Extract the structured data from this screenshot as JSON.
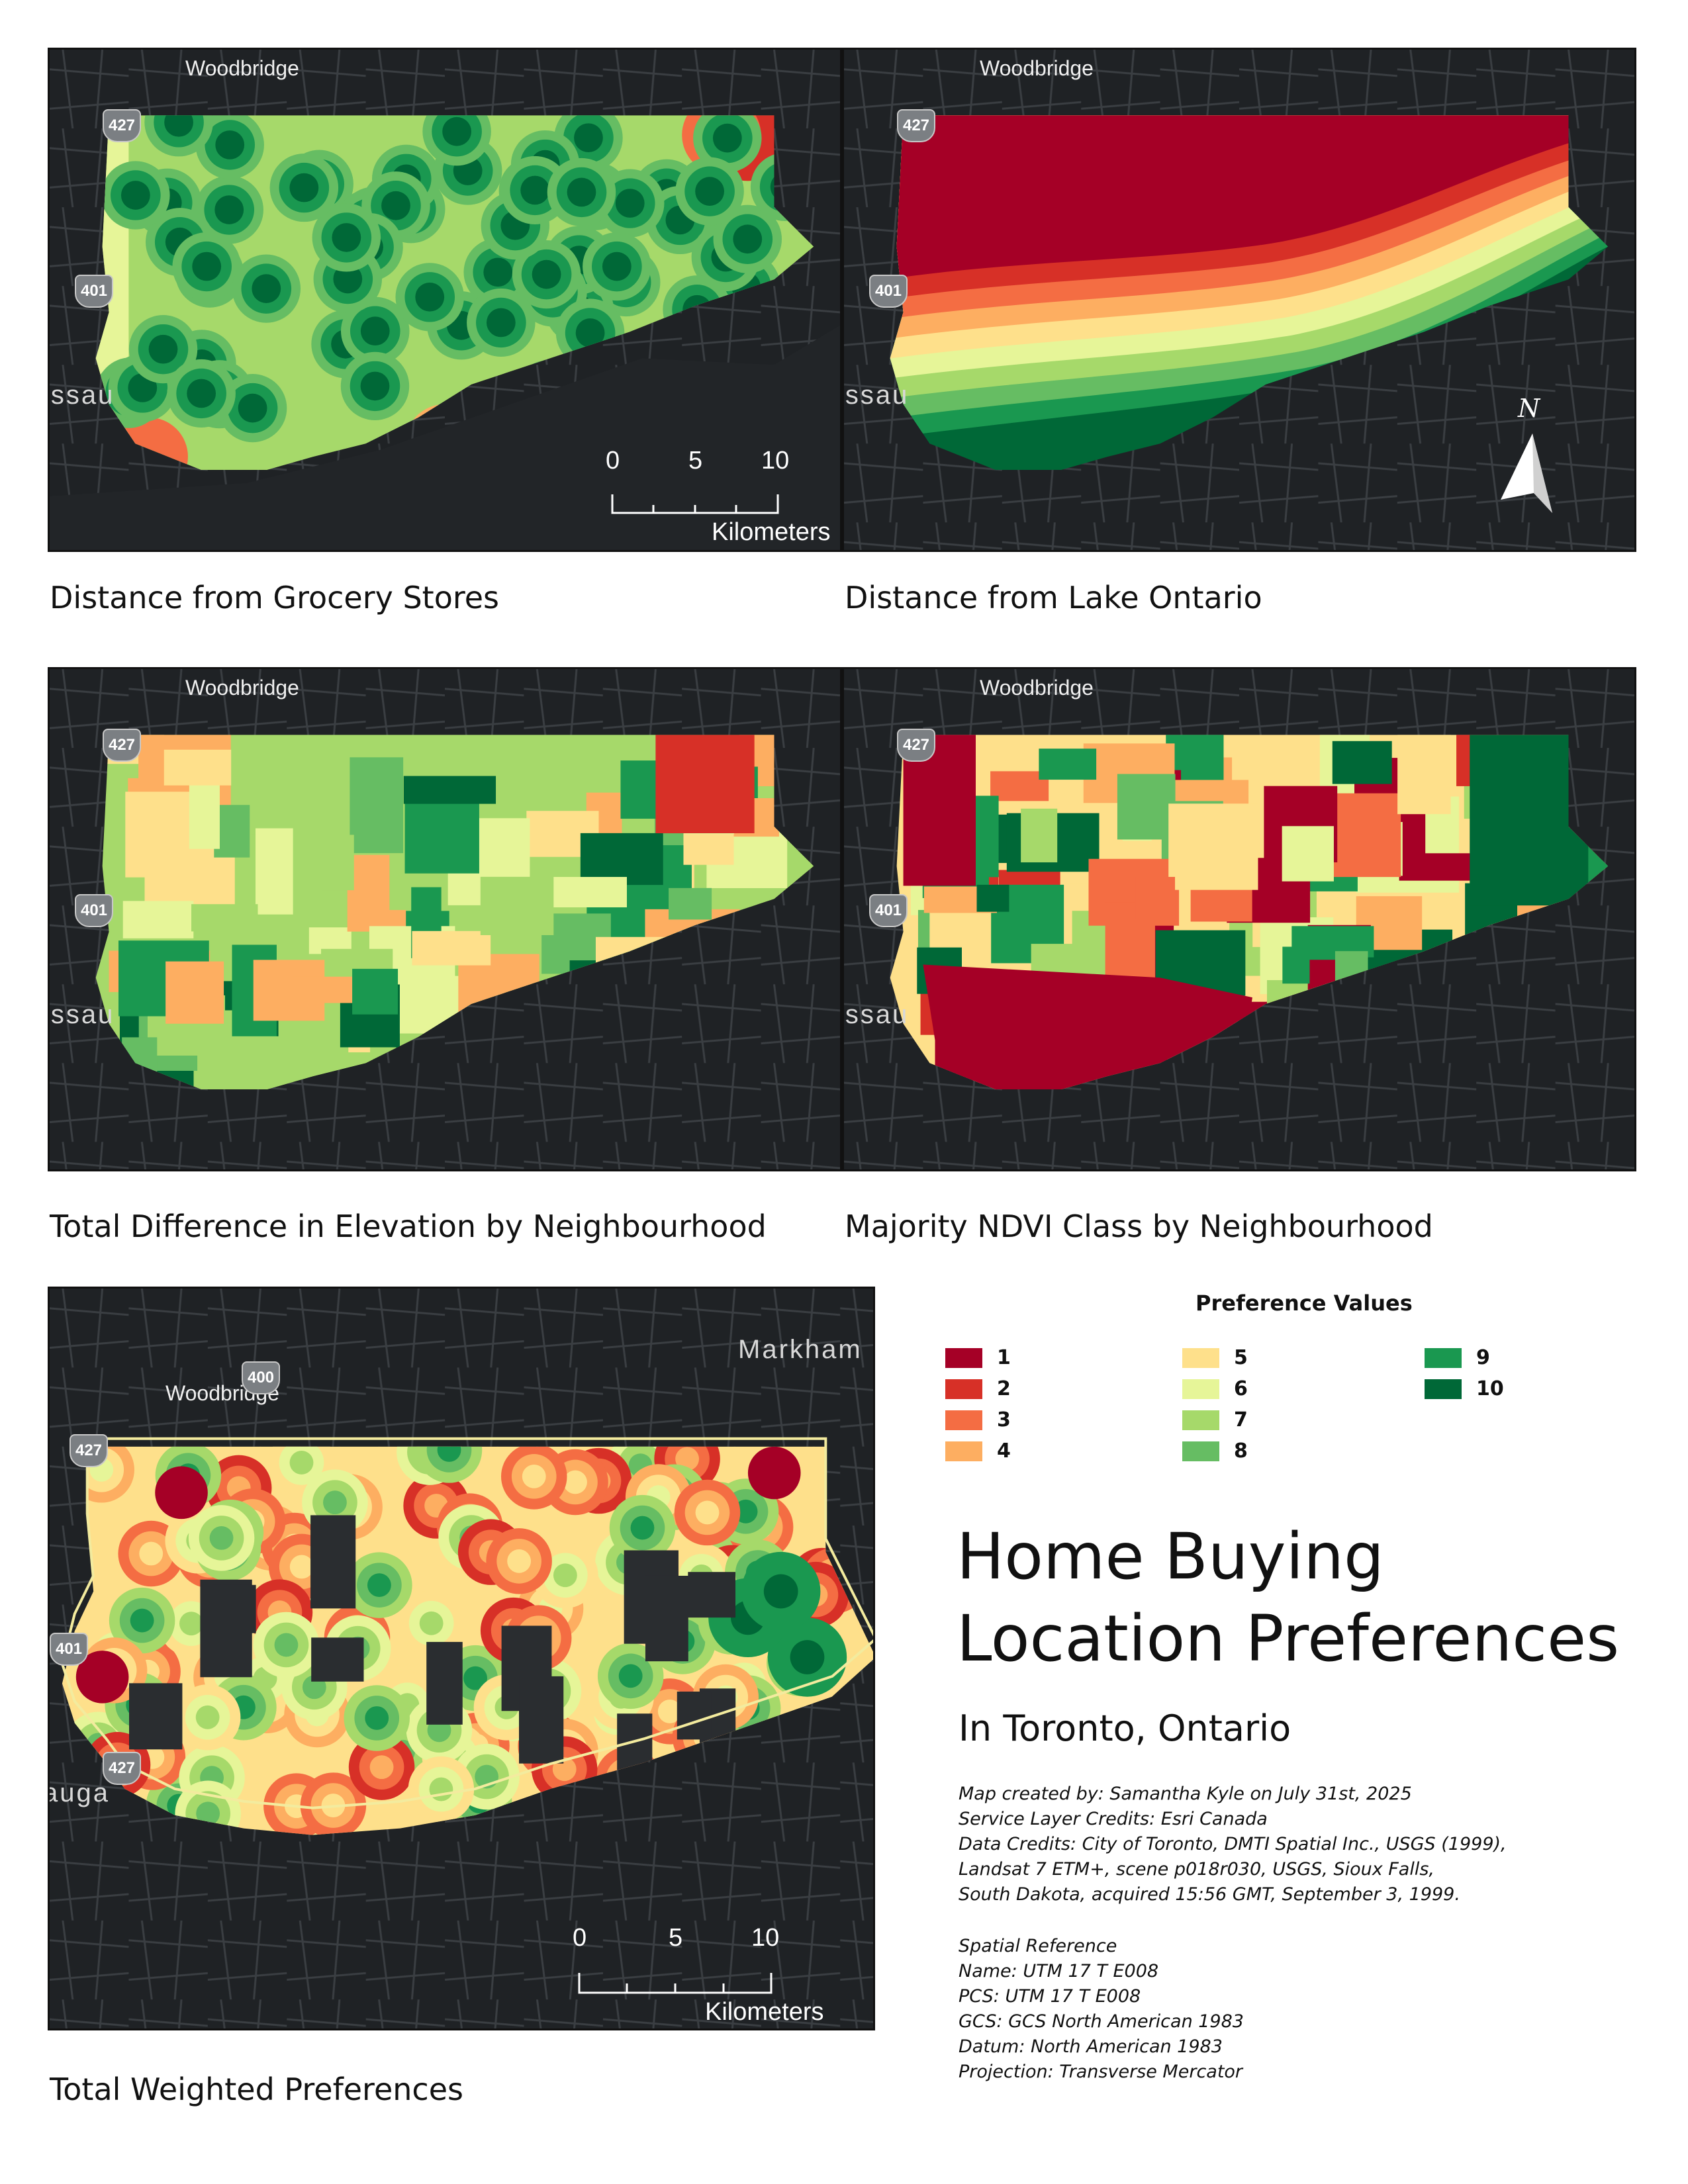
{
  "maps": {
    "grocery": {
      "caption": "Distance from Grocery Stores",
      "place": "Woodbridge",
      "partial_place": "issau",
      "shields": [
        "427",
        "401"
      ]
    },
    "lake": {
      "caption": "Distance from Lake Ontario",
      "place": "Woodbridge",
      "partial_place": "issau",
      "shields": [
        "427",
        "401"
      ]
    },
    "elevation": {
      "caption": "Total Difference in Elevation by Neighbourhood",
      "place": "Woodbridge",
      "partial_place": "issau",
      "shields": [
        "427",
        "401"
      ]
    },
    "ndvi": {
      "caption": "Majority NDVI Class by Neighbourhood",
      "place": "Woodbridge",
      "partial_place": "issau",
      "shields": [
        "427",
        "401"
      ]
    },
    "weighted": {
      "caption": "Total Weighted Preferences",
      "place": "Woodbridge",
      "place2": "Markham",
      "partial_place": "auga",
      "shields": [
        "427",
        "400",
        "401",
        "427"
      ]
    }
  },
  "scalebar": {
    "ticks": [
      "0",
      "5",
      "10"
    ],
    "unit": "Kilometers"
  },
  "north_arrow": {
    "label": "N"
  },
  "legend": {
    "title": "Preference Values",
    "items": [
      {
        "label": "1",
        "color": "#a50026"
      },
      {
        "label": "2",
        "color": "#d73027"
      },
      {
        "label": "3",
        "color": "#f46d43"
      },
      {
        "label": "4",
        "color": "#fdae61"
      },
      {
        "label": "5",
        "color": "#fee08b"
      },
      {
        "label": "6",
        "color": "#e6f598"
      },
      {
        "label": "7",
        "color": "#a6d96a"
      },
      {
        "label": "8",
        "color": "#66bd63"
      },
      {
        "label": "9",
        "color": "#1a9850"
      },
      {
        "label": "10",
        "color": "#006837"
      }
    ]
  },
  "title": {
    "line1": "Home Buying",
    "line2": "Location Preferences",
    "subtitle": "In Toronto, Ontario"
  },
  "credits": [
    "Map created by: Samantha Kyle on July 31st, 2025",
    "Service Layer Credits: Esri Canada",
    "Data Credits: City of Toronto, DMTI Spatial Inc., USGS (1999),",
    "Landsat 7 ETM+, scene p018r030, USGS, Sioux Falls,",
    "South Dakota, acquired 15:56 GMT, September 3, 1999."
  ],
  "spatial_reference": [
    "Spatial Reference",
    "Name: UTM 17 T E008",
    "PCS: UTM 17 T E008",
    "GCS: GCS North American 1983",
    "Datum: North American 1983",
    "Projection: Transverse Mercator"
  ]
}
